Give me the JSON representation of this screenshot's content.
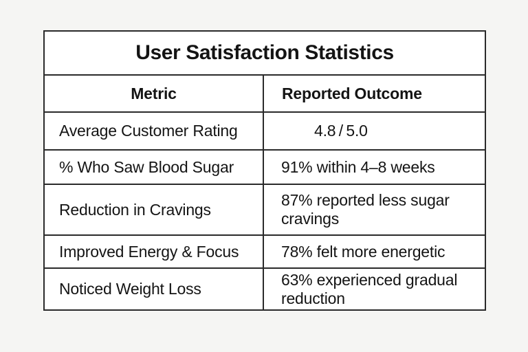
{
  "chart_data": {
    "type": "table",
    "title": "User Satisfaction Statistics",
    "columns": [
      "Metric",
      "Reported Outcome"
    ],
    "rows": [
      [
        "Average Customer Rating",
        "4.8 / 5.0"
      ],
      [
        "% Who Saw Blood Sugar",
        "91% within 4–8 weeks"
      ],
      [
        "Reduction in Cravings",
        "87% reported less sugar cravings"
      ],
      [
        "Improved Energy & Focus",
        "78% felt more energetic"
      ],
      [
        "Noticed Weight Loss",
        "63% experienced gradual reduction"
      ]
    ],
    "layout": {
      "header_metric_align": "center",
      "header_outcome_align": "left",
      "grid": "all-borders"
    },
    "colors": {
      "page_bg": "#f5f5f3",
      "cell_bg": "#ffffff",
      "border": "#2a2a2a",
      "text": "#141414"
    }
  }
}
